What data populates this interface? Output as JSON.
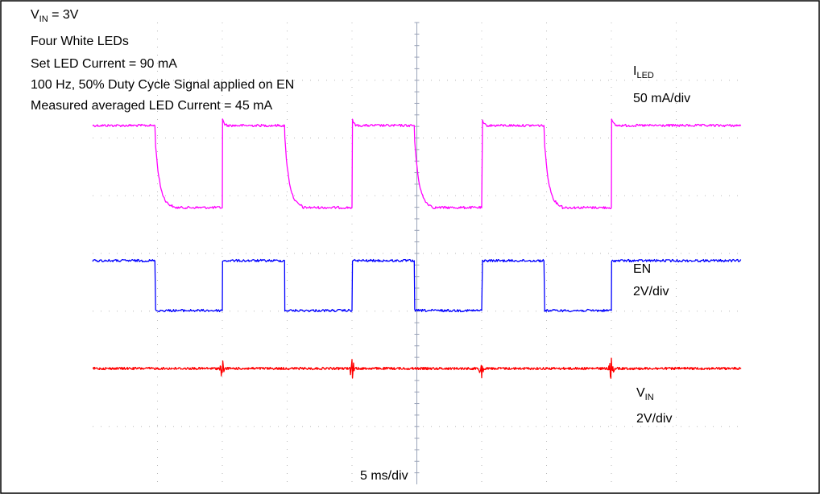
{
  "chart_data": {
    "type": "line",
    "annotations": {
      "vin_prefix": "V",
      "vin_sub": "IN",
      "vin_value": " = 3V",
      "leds": "Four White LEDs",
      "set_current": "Set LED Current = 90 mA",
      "signal": "100 Hz, 50% Duty Cycle Signal applied on EN",
      "measured": "Measured averaged LED Current = 45 mA"
    },
    "time_scale": "5 ms/div",
    "grid": {
      "x_divisions": 10,
      "y_divisions": 8,
      "style": "dotted"
    },
    "series": [
      {
        "name": "ILED",
        "label_main": "I",
        "label_sub": "LED",
        "scale": "50 mA/div",
        "color": "#ff00ff",
        "high_level": 90,
        "low_level": 0,
        "unit": "mA",
        "edges_ms": [
          4.8,
          10,
          14.8,
          20,
          24.8,
          30,
          34.8,
          40
        ]
      },
      {
        "name": "EN",
        "label_main": "EN",
        "label_sub": "",
        "scale": "2V/div",
        "color": "#0000ff",
        "high_level": 2.5,
        "low_level": 0,
        "unit": "V",
        "edges_ms": [
          4.8,
          10,
          14.8,
          20,
          24.8,
          30,
          34.8,
          40
        ]
      },
      {
        "name": "VIN",
        "label_main": "V",
        "label_sub": "IN",
        "scale": "2V/div",
        "color": "#ff0000",
        "level": 3,
        "unit": "V",
        "spikes_ms": [
          10,
          20,
          30,
          40
        ]
      }
    ]
  }
}
